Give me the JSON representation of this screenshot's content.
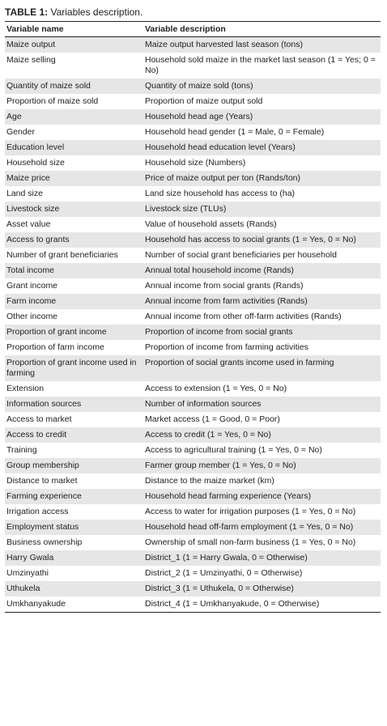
{
  "title": {
    "label": "TABLE 1:",
    "text": "Variables description."
  },
  "table": {
    "columns": [
      "Variable name",
      "Variable description"
    ],
    "rows": [
      [
        "Maize output",
        "Maize output harvested last season (tons)"
      ],
      [
        "Maize selling",
        "Household sold maize in the market last season (1 = Yes; 0 = No)"
      ],
      [
        "Quantity of maize sold",
        "Quantity of maize sold (tons)"
      ],
      [
        "Proportion of maize sold",
        "Proportion of maize output sold"
      ],
      [
        "Age",
        "Household head age (Years)"
      ],
      [
        "Gender",
        "Household head gender (1 = Male, 0 = Female)"
      ],
      [
        "Education level",
        "Household head education level (Years)"
      ],
      [
        "Household size",
        "Household size (Numbers)"
      ],
      [
        "Maize price",
        "Price of maize output per ton (Rands/ton)"
      ],
      [
        "Land size",
        "Land size household has access to (ha)"
      ],
      [
        "Livestock size",
        "Livestock size (TLUs)"
      ],
      [
        "Asset value",
        "Value of household assets (Rands)"
      ],
      [
        "Access to grants",
        "Household has access to social grants (1 = Yes, 0 = No)"
      ],
      [
        "Number of grant beneficiaries",
        "Number of social grant beneficiaries per household"
      ],
      [
        "Total income",
        "Annual total household income (Rands)"
      ],
      [
        "Grant income",
        "Annual income from social grants (Rands)"
      ],
      [
        "Farm income",
        "Annual income from farm activities (Rands)"
      ],
      [
        "Other income",
        "Annual income from other off-farm activities (Rands)"
      ],
      [
        "Proportion of grant income",
        "Proportion of income from social grants"
      ],
      [
        "Proportion of farm income",
        "Proportion of income from farming activities"
      ],
      [
        "Proportion of grant income used in farming",
        "Proportion of social grants income used in farming"
      ],
      [
        "Extension",
        "Access to extension (1 = Yes, 0 = No)"
      ],
      [
        "Information sources",
        "Number of information sources"
      ],
      [
        "Access to market",
        "Market access (1 = Good, 0 = Poor)"
      ],
      [
        "Access to credit",
        "Access to credit (1 = Yes, 0 = No)"
      ],
      [
        "Training",
        "Access to agricultural training (1 = Yes, 0 = No)"
      ],
      [
        "Group membership",
        "Farmer group member (1 = Yes, 0 = No)"
      ],
      [
        "Distance to market",
        "Distance to the maize market (km)"
      ],
      [
        "Farming experience",
        "Household head farming experience (Years)"
      ],
      [
        "Irrigation access",
        "Access to water for irrigation purposes (1 = Yes, 0 = No)"
      ],
      [
        "Employment status",
        "Household head off-farm employment (1 = Yes, 0 = No)"
      ],
      [
        "Business ownership",
        "Ownership of small non-farm business (1 = Yes, 0 = No)"
      ],
      [
        "Harry Gwala",
        "District_1 (1 = Harry Gwala, 0 = Otherwise)"
      ],
      [
        "Umzinyathi",
        "District_2 (1 = Umzinyathi, 0 = Otherwise)"
      ],
      [
        "Uthukela",
        "District_3 (1 = Uthukela, 0 = Otherwise)"
      ],
      [
        "Umkhanyakude",
        "District_4 (1 = Umkhanyakude, 0 = Otherwise)"
      ]
    ]
  }
}
